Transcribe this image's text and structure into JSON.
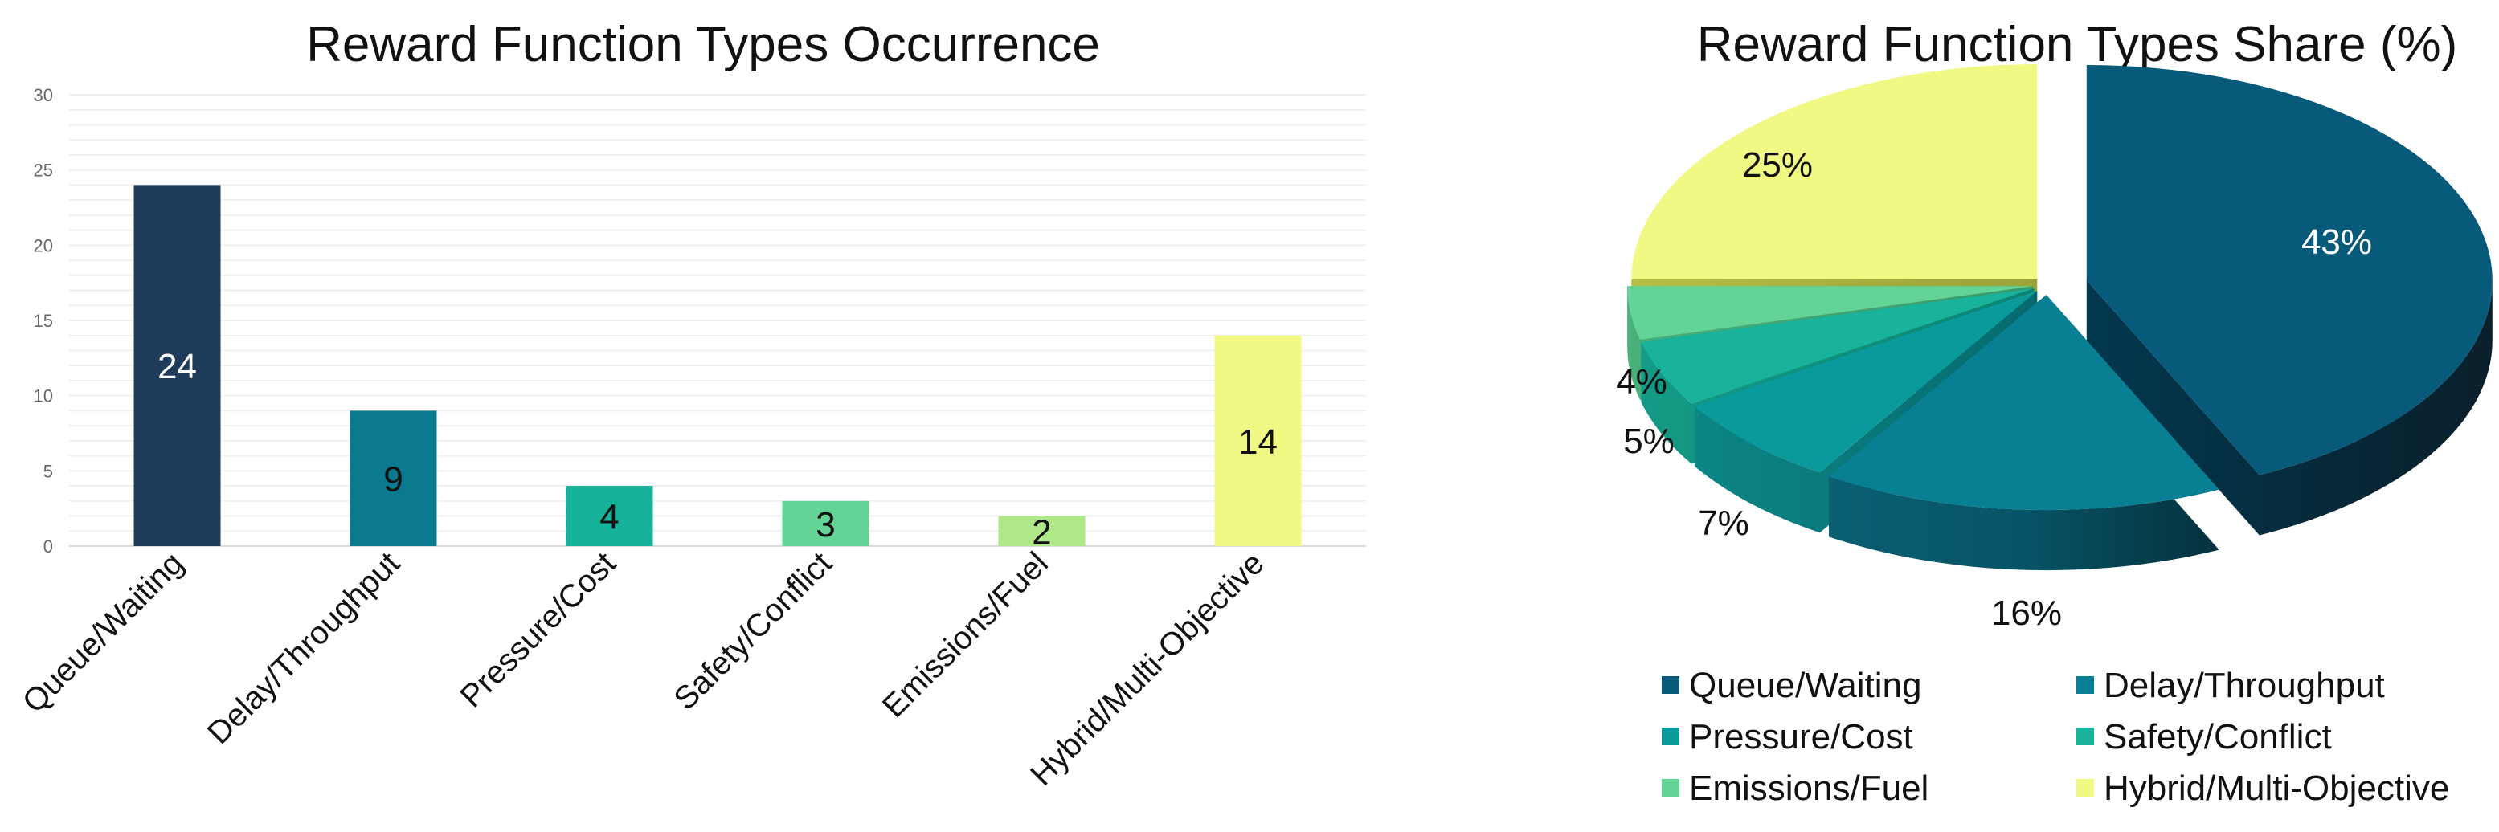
{
  "chart_data": [
    {
      "type": "bar",
      "title": "Reward Function Types Occurrence",
      "categories": [
        "Queue/Waiting",
        "Delay/Throughput",
        "Pressure/Cost",
        "Safety/Conflict",
        "Emissions/Fuel",
        "Hybrid/Multi-Objective"
      ],
      "values": [
        24,
        9,
        4,
        3,
        2,
        14
      ],
      "value_labels": [
        "24",
        "9",
        "4",
        "3",
        "2",
        "14"
      ],
      "colors": [
        "#1f3b5a",
        "#0b7a8f",
        "#16b39a",
        "#64d496",
        "#aee888",
        "#f0f983"
      ],
      "label_colors": [
        "#ffffff",
        "#111111",
        "#111111",
        "#111111",
        "#111111",
        "#111111"
      ],
      "ylim": [
        0,
        30
      ],
      "yticks": [
        "0",
        "5",
        "10",
        "15",
        "20",
        "25",
        "30"
      ],
      "xlabel": "",
      "ylabel": "",
      "grid": true,
      "legend": "none"
    },
    {
      "type": "pie",
      "title": "Reward Function Types Share (%)",
      "categories": [
        "Queue/Waiting",
        "Delay/Throughput",
        "Pressure/Cost",
        "Safety/Conflict",
        "Emissions/Fuel",
        "Hybrid/Multi-Objective"
      ],
      "values": [
        43,
        16,
        7,
        5,
        4,
        25
      ],
      "value_labels": [
        "43%",
        "16%",
        "7%",
        "5%",
        "4%",
        "25%"
      ],
      "colors": [
        "#085a7a",
        "#087f92",
        "#0a9a9c",
        "#18b39a",
        "#64d496",
        "#f0f983"
      ],
      "legend": "bottom",
      "style": "3d-exploded"
    }
  ]
}
